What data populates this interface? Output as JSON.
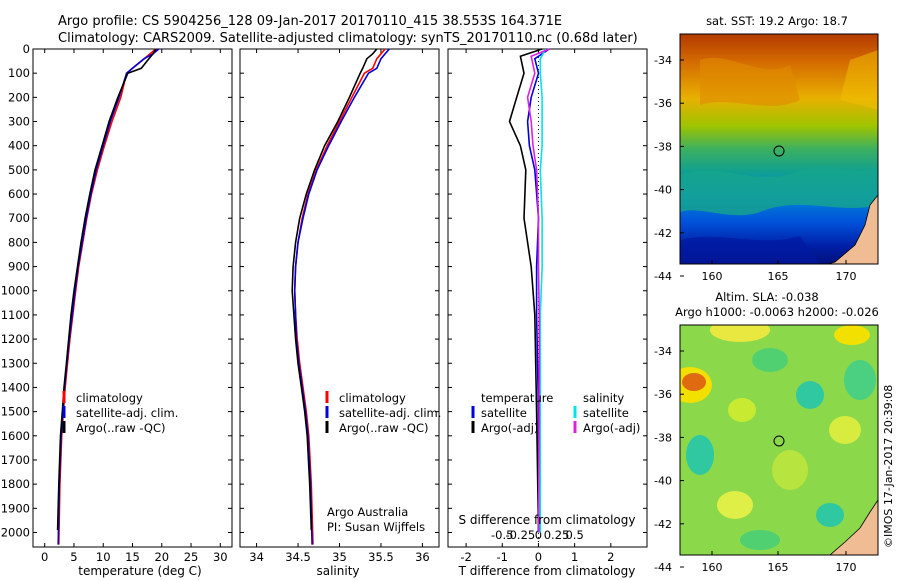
{
  "header": {
    "line1": "Argo profile: CS 5904256_128 09-Jan-2017 20170110_415 38.553S 164.371E",
    "line2": "Climatology: CARS2009. Satellite-adjusted climatology: synTS_20170110.nc (0.68d later)"
  },
  "depth_ticks": [
    "0",
    "100",
    "200",
    "300",
    "400",
    "500",
    "600",
    "700",
    "800",
    "900",
    "1000",
    "1100",
    "1200",
    "1300",
    "1400",
    "1500",
    "1600",
    "1700",
    "1800",
    "1900",
    "2000"
  ],
  "colors": {
    "red": "#ff0000",
    "blue": "#0000dd",
    "black": "#000000",
    "cyan": "#00e5e5",
    "magenta": "#e020e0"
  },
  "chart_data": [
    {
      "type": "line",
      "xlabel": "temperature (deg C)",
      "xlim": [
        -2,
        32
      ],
      "ylim": [
        2060,
        0
      ],
      "xticks": [
        "0",
        "5",
        "10",
        "15",
        "20",
        "25",
        "30"
      ],
      "legend": [
        "climatology",
        "satellite-adj. clim.",
        "Argo(..raw -QC)"
      ],
      "series": [
        {
          "name": "climatology",
          "color": "red",
          "x": [
            19,
            18,
            17,
            15,
            14,
            13,
            11.5,
            10.2,
            9,
            8,
            7.2,
            6.5,
            5.8,
            5.3,
            4.8,
            4.3,
            3.9,
            3.5,
            3.2,
            2.9,
            2.6,
            2.4
          ],
          "y": [
            0,
            20,
            40,
            80,
            100,
            200,
            300,
            400,
            500,
            600,
            700,
            800,
            900,
            1000,
            1100,
            1200,
            1300,
            1400,
            1500,
            1600,
            1800,
            2050
          ]
        },
        {
          "name": "satellite-adj. clim.",
          "color": "blue",
          "x": [
            19.5,
            18.5,
            17,
            15,
            14,
            12.7,
            11.2,
            10,
            8.8,
            7.9,
            7.1,
            6.4,
            5.7,
            5.2,
            4.7,
            4.2,
            3.8,
            3.4,
            3.1,
            2.8,
            2.5,
            2.3
          ],
          "y": [
            0,
            20,
            40,
            80,
            100,
            200,
            300,
            400,
            500,
            600,
            700,
            800,
            900,
            1000,
            1100,
            1200,
            1300,
            1400,
            1500,
            1600,
            1800,
            2050
          ]
        },
        {
          "name": "Argo(..raw -QC)",
          "color": "black",
          "x": [
            19,
            18.5,
            17.8,
            16.5,
            14.2,
            12.5,
            11,
            9.8,
            8.6,
            7.7,
            6.9,
            6.2,
            5.6,
            5,
            4.5,
            4.1,
            3.7,
            3.3,
            3,
            2.7,
            2.4,
            2.2
          ],
          "y": [
            0,
            20,
            40,
            80,
            100,
            200,
            300,
            400,
            500,
            600,
            700,
            800,
            900,
            1000,
            1100,
            1200,
            1300,
            1400,
            1500,
            1600,
            1800,
            1990
          ]
        }
      ]
    },
    {
      "type": "line",
      "xlabel": "salinity",
      "xlim": [
        33.8,
        36.2
      ],
      "ylim": [
        2060,
        0
      ],
      "xticks": [
        "34",
        "34.5",
        "35",
        "35.5",
        "36"
      ],
      "legend": [
        "climatology",
        "satellite-adj. clim.",
        "Argo(..raw -QC)"
      ],
      "annotation": [
        "Argo Australia",
        "PI: Susan Wijffels"
      ],
      "series": [
        {
          "name": "climatology",
          "color": "red",
          "x": [
            35.55,
            35.5,
            35.45,
            35.4,
            35.3,
            35.15,
            35.0,
            34.85,
            34.72,
            34.62,
            34.55,
            34.5,
            34.47,
            34.46,
            34.47,
            34.49,
            34.52,
            34.56,
            34.6,
            34.63,
            34.66,
            34.68
          ],
          "y": [
            0,
            20,
            40,
            80,
            100,
            200,
            300,
            400,
            500,
            600,
            700,
            800,
            900,
            1000,
            1100,
            1200,
            1300,
            1400,
            1500,
            1600,
            1800,
            2050
          ]
        },
        {
          "name": "satellite-adj. clim.",
          "color": "blue",
          "x": [
            35.6,
            35.55,
            35.5,
            35.45,
            35.35,
            35.18,
            35.02,
            34.87,
            34.73,
            34.63,
            34.56,
            34.5,
            34.47,
            34.46,
            34.47,
            34.48,
            34.51,
            34.55,
            34.59,
            34.62,
            34.65,
            34.67
          ],
          "y": [
            0,
            20,
            40,
            80,
            100,
            200,
            300,
            400,
            500,
            600,
            700,
            800,
            900,
            1000,
            1100,
            1200,
            1300,
            1400,
            1500,
            1600,
            1800,
            2050
          ]
        },
        {
          "name": "Argo(..raw -QC)",
          "color": "black",
          "x": [
            35.45,
            35.4,
            35.33,
            35.28,
            35.25,
            35.12,
            34.98,
            34.82,
            34.7,
            34.6,
            34.52,
            34.47,
            34.44,
            34.43,
            34.45,
            34.47,
            34.5,
            34.54,
            34.58,
            34.61,
            34.64,
            34.66
          ],
          "y": [
            0,
            20,
            40,
            80,
            100,
            200,
            300,
            400,
            500,
            600,
            700,
            800,
            900,
            1000,
            1100,
            1200,
            1300,
            1400,
            1500,
            1600,
            1800,
            1990
          ]
        }
      ]
    },
    {
      "type": "line",
      "xlabel": "T difference from climatology",
      "xlabel2": "S difference from climatology",
      "xlim": [
        -2.5,
        3
      ],
      "ylim": [
        2060,
        0
      ],
      "xticks": [
        "-2",
        "-1",
        "0",
        "1",
        "2"
      ],
      "xticks2": [
        "-0.5",
        "-0.25",
        "0",
        "0.25",
        "0.5"
      ],
      "legend_headers": [
        "temperature",
        "salinity"
      ],
      "legend": [
        "satellite",
        "Argo(-adj)",
        "satellite",
        "Argo(-adj)"
      ],
      "series": [
        {
          "name": "satellite",
          "color": "blue",
          "x": [
            0.3,
            -0.1,
            0.0,
            -0.2,
            -0.3,
            -0.25,
            -0.1,
            0,
            -0.05,
            -0.05,
            0,
            0
          ],
          "y": [
            0,
            40,
            100,
            200,
            300,
            400,
            500,
            700,
            900,
            1100,
            1500,
            2000
          ]
        },
        {
          "name": "Argo(-adj)",
          "color": "black",
          "x": [
            0.1,
            -0.5,
            -0.4,
            -0.6,
            -0.8,
            -0.5,
            -0.35,
            -0.4,
            -0.2,
            -0.1,
            -0.05,
            0
          ],
          "y": [
            0,
            30,
            100,
            200,
            300,
            400,
            500,
            700,
            900,
            1100,
            1500,
            2000
          ]
        },
        {
          "name": "satellite",
          "color": "cyan",
          "x": [
            0.2,
            0.05,
            0.05,
            0.1,
            0.1,
            0.1,
            0.05,
            0.1,
            0.1,
            0.05,
            0.05,
            0.05
          ],
          "y": [
            0,
            40,
            100,
            200,
            300,
            400,
            500,
            700,
            900,
            1100,
            1500,
            2000
          ]
        },
        {
          "name": "Argo(-adj)",
          "color": "magenta",
          "x": [
            0.3,
            -0.2,
            -0.1,
            -0.3,
            -0.2,
            -0.15,
            -0.05,
            0,
            0,
            0.02,
            0.02,
            0
          ],
          "y": [
            0,
            30,
            100,
            200,
            300,
            400,
            500,
            700,
            900,
            1100,
            1500,
            2000
          ]
        }
      ]
    }
  ],
  "maps": [
    {
      "title": "sat. SST: 19.2  Argo: 18.7",
      "xticks": [
        "160",
        "165",
        "170"
      ],
      "yticks": [
        "-34",
        "-36",
        "-38",
        "-40",
        "-42",
        "-44"
      ]
    },
    {
      "title1": "Altim. SLA: -0.038",
      "title2": "Argo h1000: -0.0063  h2000: -0.026",
      "xticks": [
        "160",
        "165",
        "170"
      ],
      "yticks": [
        "-34",
        "-36",
        "-38",
        "-40",
        "-42",
        "-44"
      ]
    }
  ],
  "stamp": "©IMOS 17-Jan-2017 20:39:08"
}
